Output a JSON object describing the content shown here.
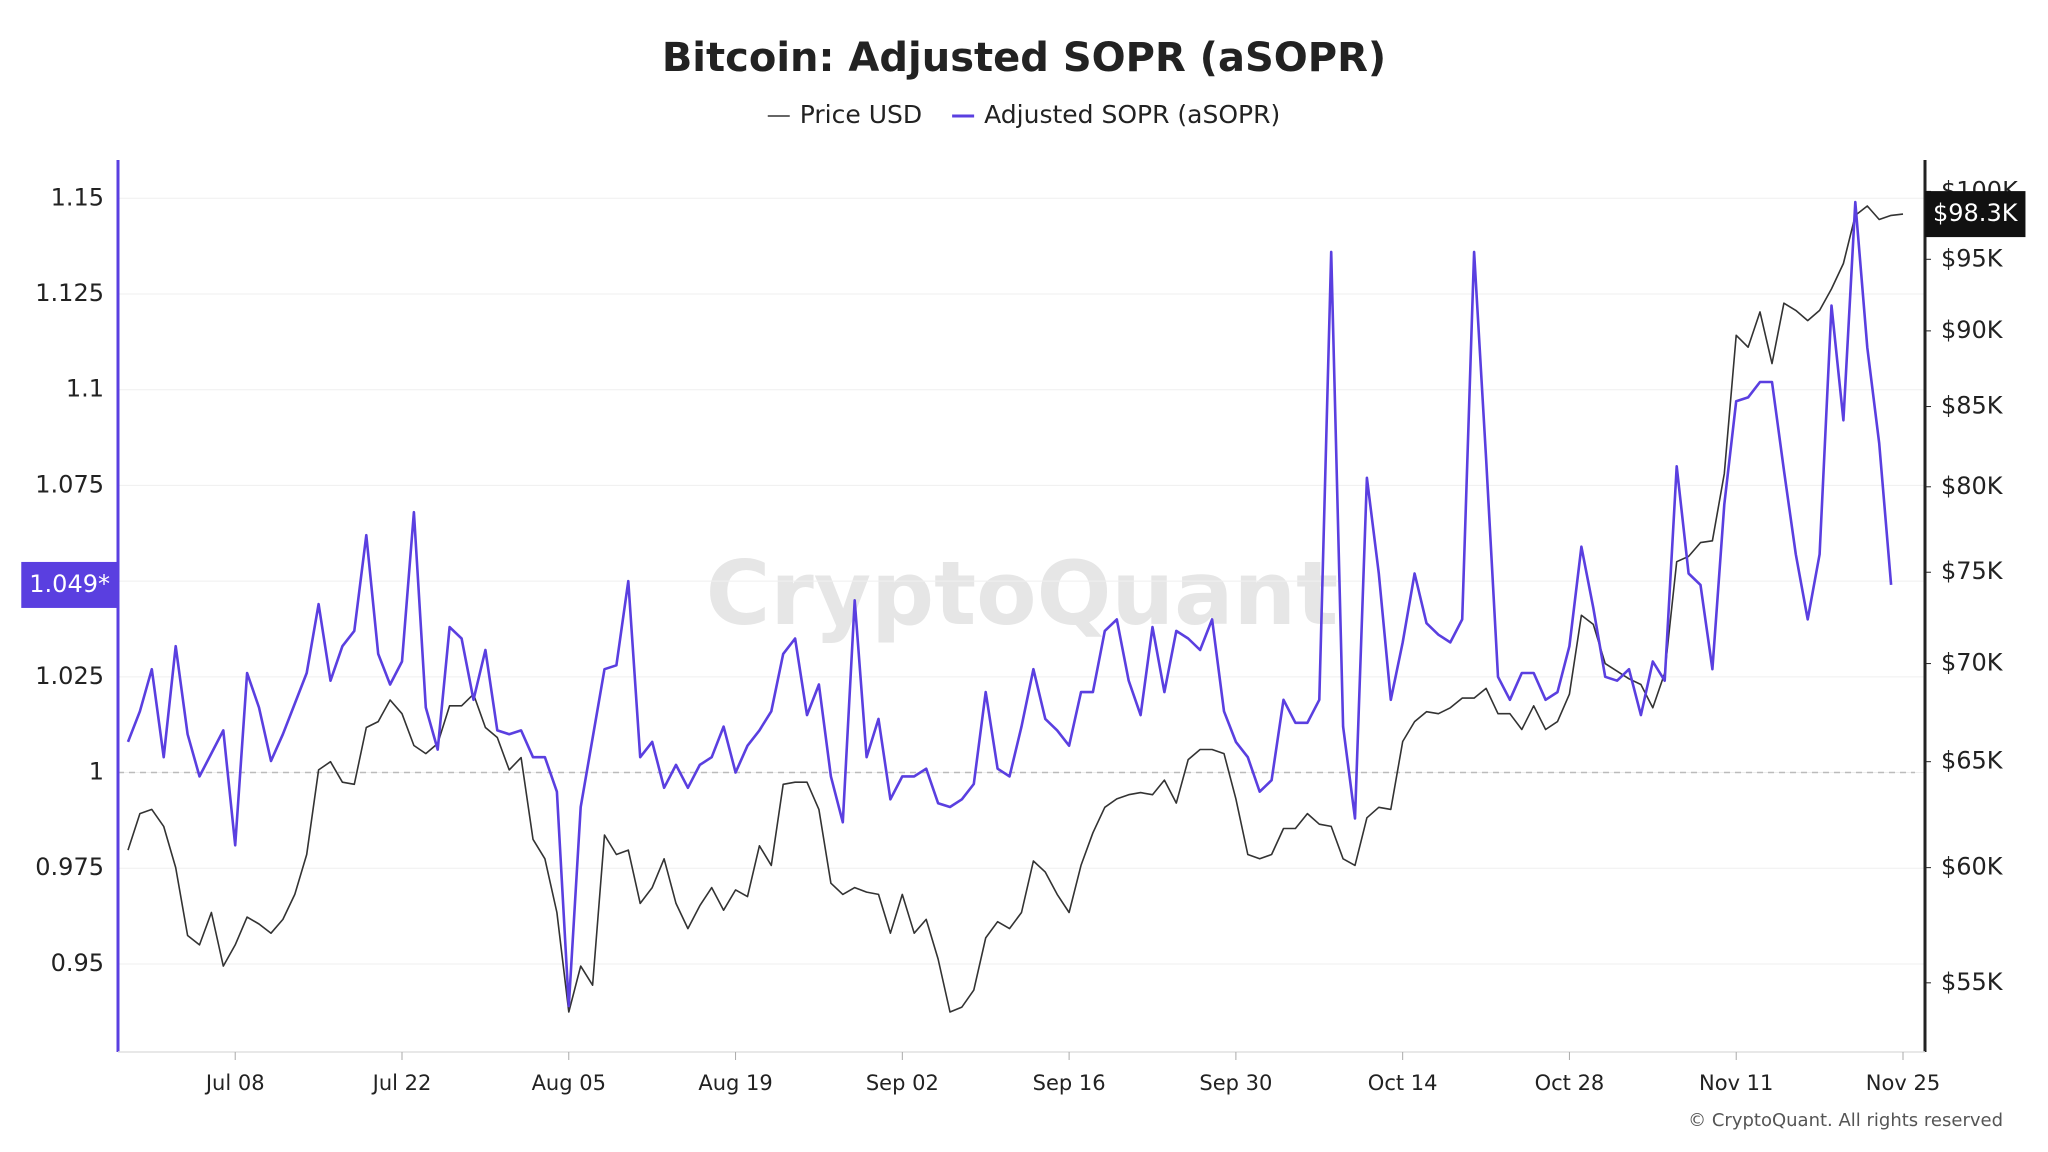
{
  "chart_data": {
    "type": "line",
    "title": "Bitcoin: Adjusted SOPR (aSOPR)",
    "watermark": "CryptoQuant",
    "footer": "© CryptoQuant. All rights reserved",
    "categories": [
      null,
      null,
      null,
      null,
      null,
      null,
      null,
      null,
      null,
      "Jul 08",
      null,
      null,
      null,
      null,
      null,
      null,
      null,
      null,
      null,
      null,
      null,
      null,
      null,
      "Jul 22",
      null,
      null,
      null,
      null,
      null,
      null,
      null,
      null,
      null,
      null,
      null,
      null,
      null,
      "Aug 05",
      null,
      null,
      null,
      null,
      null,
      null,
      null,
      null,
      null,
      null,
      null,
      null,
      null,
      "Aug 19",
      null,
      null,
      null,
      null,
      null,
      null,
      null,
      null,
      null,
      null,
      null,
      null,
      null,
      "Sep 02",
      null,
      null,
      null,
      null,
      null,
      null,
      null,
      null,
      null,
      null,
      null,
      null,
      null,
      "Sep 16",
      null,
      null,
      null,
      null,
      null,
      null,
      null,
      null,
      null,
      null,
      null,
      null,
      null,
      "Sep 30",
      null,
      null,
      null,
      null,
      null,
      null,
      null,
      null,
      null,
      null,
      null,
      null,
      null,
      "Oct 14",
      null,
      null,
      null,
      null,
      null,
      null,
      null,
      null,
      null,
      null,
      null,
      null,
      null,
      "Oct 28",
      null,
      null,
      null,
      null,
      null,
      null,
      null,
      null,
      null,
      null,
      null,
      null,
      null,
      "Nov 11",
      null,
      null,
      null,
      null,
      null,
      null,
      null,
      null,
      null,
      null,
      null,
      null,
      null,
      "Nov 25"
    ],
    "series": [
      {
        "name": "Price USD",
        "color": "#333333",
        "axis": "y2",
        "badge": "$98.3K",
        "values": [
          60800,
          62500,
          62700,
          61900,
          60000,
          57000,
          56600,
          58000,
          55700,
          56600,
          57800,
          57500,
          57100,
          57700,
          58800,
          60600,
          64600,
          65000,
          64000,
          63900,
          66700,
          67000,
          68100,
          67400,
          65800,
          65400,
          65900,
          67800,
          67800,
          68400,
          66700,
          66200,
          64600,
          65200,
          61300,
          60400,
          58000,
          53800,
          55700,
          54900,
          61500,
          60600,
          60800,
          58400,
          59100,
          60400,
          58400,
          57300,
          58300,
          59100,
          58100,
          59000,
          58700,
          61000,
          60100,
          63900,
          64000,
          64000,
          62700,
          59300,
          58800,
          59100,
          58900,
          58800,
          57100,
          58800,
          57100,
          57700,
          56000,
          53800,
          54000,
          54700,
          56900,
          57600,
          57300,
          58000,
          60300,
          59800,
          58800,
          58000,
          60100,
          61600,
          62800,
          63200,
          63400,
          63500,
          63400,
          64100,
          63000,
          65100,
          65600,
          65600,
          65400,
          63200,
          60600,
          60400,
          60600,
          61800,
          61800,
          62500,
          62000,
          61900,
          60400,
          60100,
          62300,
          62800,
          62700,
          66000,
          67000,
          67500,
          67400,
          67700,
          68200,
          68200,
          68700,
          67400,
          67400,
          66600,
          67800,
          66600,
          67000,
          68400,
          72600,
          72100,
          70000,
          69600,
          69200,
          68900,
          67700,
          69500,
          75600,
          75900,
          76700,
          76800,
          80800,
          89700,
          88900,
          91300,
          87800,
          91900,
          91400,
          90700,
          91400,
          92900,
          94700,
          98200,
          98900,
          97900,
          98200,
          98300
        ]
      },
      {
        "name": "Adjusted SOPR (aSOPR)",
        "color": "#5a3fe0",
        "axis": "y",
        "badge": "1.049*",
        "values": [
          1.008,
          1.016,
          1.027,
          1.004,
          1.033,
          1.01,
          0.999,
          1.005,
          1.011,
          0.981,
          1.026,
          1.017,
          1.003,
          1.01,
          1.018,
          1.026,
          1.044,
          1.024,
          1.033,
          1.037,
          1.062,
          1.031,
          1.023,
          1.029,
          1.068,
          1.017,
          1.006,
          1.038,
          1.035,
          1.019,
          1.032,
          1.011,
          1.01,
          1.011,
          1.004,
          1.004,
          0.995,
          0.939,
          0.991,
          1.009,
          1.027,
          1.028,
          1.05,
          1.004,
          1.008,
          0.996,
          1.002,
          0.996,
          1.002,
          1.004,
          1.012,
          1.0,
          1.007,
          1.011,
          1.016,
          1.031,
          1.035,
          1.015,
          1.023,
          0.999,
          0.987,
          1.045,
          1.004,
          1.014,
          0.993,
          0.999,
          0.999,
          1.001,
          0.992,
          0.991,
          0.993,
          0.997,
          1.021,
          1.001,
          0.999,
          1.012,
          1.027,
          1.014,
          1.011,
          1.007,
          1.021,
          1.021,
          1.037,
          1.04,
          1.024,
          1.015,
          1.038,
          1.021,
          1.037,
          1.035,
          1.032,
          1.04,
          1.016,
          1.008,
          1.004,
          0.995,
          0.998,
          1.019,
          1.013,
          1.013,
          1.019,
          1.136,
          1.012,
          0.988,
          1.077,
          1.052,
          1.019,
          1.034,
          1.052,
          1.039,
          1.036,
          1.034,
          1.04,
          1.136,
          1.082,
          1.025,
          1.019,
          1.026,
          1.026,
          1.019,
          1.021,
          1.033,
          1.059,
          1.043,
          1.025,
          1.024,
          1.027,
          1.015,
          1.029,
          1.024,
          1.08,
          1.052,
          1.049,
          1.027,
          1.07,
          1.097,
          1.098,
          1.102,
          1.102,
          1.079,
          1.057,
          1.04,
          1.057,
          1.122,
          1.092,
          1.149,
          1.111,
          1.086,
          1.049,
          null
        ]
      }
    ],
    "ylim": [
      0.927,
      1.16
    ],
    "yticks": [
      0.95,
      0.975,
      1,
      1.025,
      1.05,
      1.075,
      1.1,
      1.125,
      1.15
    ],
    "y2lim": [
      52200,
      102400
    ],
    "y2log": true,
    "y2ticks": [
      {
        "value": 55000,
        "label": "$55K"
      },
      {
        "value": 60000,
        "label": "$60K"
      },
      {
        "value": 65000,
        "label": "$65K"
      },
      {
        "value": 70000,
        "label": "$70K"
      },
      {
        "value": 75000,
        "label": "$75K"
      },
      {
        "value": 80000,
        "label": "$80K"
      },
      {
        "value": 85000,
        "label": "$85K"
      },
      {
        "value": 90000,
        "label": "$90K"
      },
      {
        "value": 95000,
        "label": "$95K"
      },
      {
        "value": 100000,
        "label": "$100K"
      }
    ],
    "reference_line": 1,
    "grid": true,
    "legend": "top"
  }
}
